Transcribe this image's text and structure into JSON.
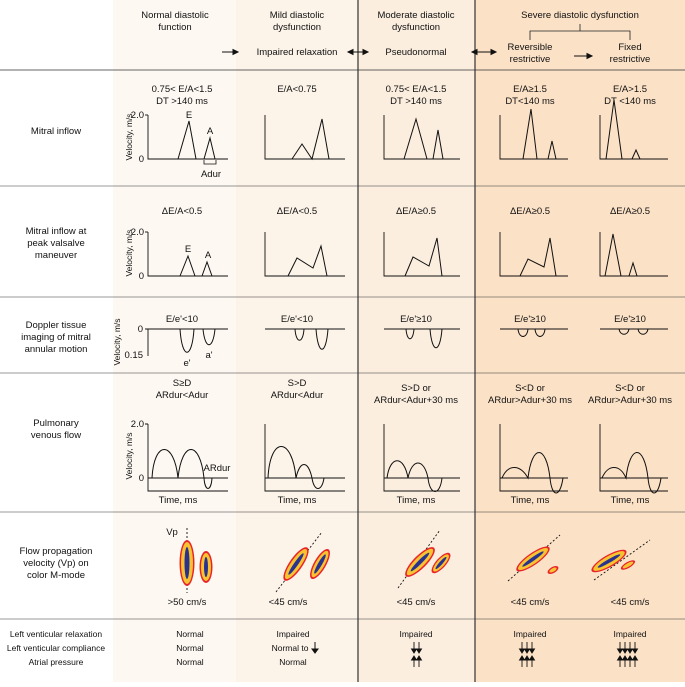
{
  "colors": {
    "col_normal": "#fdf8f2",
    "col_mild": "#fcf3e9",
    "col_moderate": "#fbeedf",
    "col_severe": "#fbe1c6",
    "line": "#333333",
    "flow_outer": "#e8242a",
    "flow_mid": "#f7c331",
    "flow_inner": "#29338f"
  },
  "headers": {
    "normal": [
      "Normal diastolic",
      "function"
    ],
    "mild": [
      "Mild diastolic",
      "dysfunction"
    ],
    "mild_sub": "Impaired relaxation",
    "moderate": [
      "Moderate diastolic",
      "dysfunction"
    ],
    "moderate_sub": "Pseudonormal",
    "severe": "Severe diastolic dysfunction",
    "severe_rev": [
      "Reversible",
      "restrictive"
    ],
    "severe_fix": [
      "Fixed",
      "restrictive"
    ]
  },
  "rows": {
    "mitral": "Mitral inflow",
    "valsalva": [
      "Mitral inflow at",
      "peak valsalve",
      "maneuver"
    ],
    "tissue": [
      "Doppler tissue",
      "imaging of mitral",
      "annular motion"
    ],
    "pulm": [
      "Pulmonary",
      "venous flow"
    ],
    "vp": [
      "Flow propagation",
      "velocity (Vp) on",
      "color M-mode"
    ]
  },
  "axis": {
    "velocity": "Velocity, m/s",
    "time": "Time, ms",
    "v2": "2.0",
    "v0": "0",
    "tissue_top": "0",
    "tissue_bot": "0.15"
  },
  "peak_labels": {
    "E": "E",
    "A": "A",
    "Adur": "Adur",
    "e_prime": "e'",
    "a_prime": "a'",
    "ardur": "ARdur",
    "vp": "Vp"
  },
  "mitral_criteria": {
    "normal": [
      "0.75< E/A<1.5",
      "DT >140 ms"
    ],
    "mild": [
      "E/A<0.75"
    ],
    "moderate": [
      "0.75< E/A<1.5",
      "DT >140 ms"
    ],
    "rev": [
      "E/A≥1.5",
      "DT<140 ms"
    ],
    "fix": [
      "E/A>1.5",
      "DT <140 ms"
    ]
  },
  "valsalva_criteria": {
    "normal": "ΔE/A<0.5",
    "mild": "ΔE/A<0.5",
    "moderate": "ΔE/A≥0.5",
    "rev": "ΔE/A≥0.5",
    "fix": "ΔE/A≥0.5"
  },
  "tissue_criteria": {
    "normal": "E/e'<10",
    "mild": "E/e'<10",
    "moderate": "E/e'≥10",
    "rev": "E/e'≥10",
    "fix": "E/e'≥10"
  },
  "pulm_criteria": {
    "normal": [
      "S≥D",
      "ARdur<Adur"
    ],
    "mild": [
      "S>D",
      "ARdur<Adur"
    ],
    "moderate": [
      "S>D or",
      "ARdur<Adur+30 ms"
    ],
    "rev": [
      "S<D or",
      "ARdur>Adur+30 ms"
    ],
    "fix": [
      "S<D or",
      "ARdur>Adur+30 ms"
    ]
  },
  "vp_criteria": {
    "normal": ">50 cm/s",
    "mild": "<45 cm/s",
    "moderate": "<45 cm/s",
    "rev": "<45 cm/s",
    "fix": "<45 cm/s"
  },
  "bottom": {
    "labels": [
      "Left venticular relaxation",
      "Left venticular compliance",
      "Atrial pressure"
    ],
    "normal": [
      "Normal",
      "Normal",
      "Normal"
    ],
    "mild": [
      "Impaired",
      "Normal to",
      "Normal"
    ],
    "moderate": "Impaired",
    "rev": "Impaired",
    "fix": "Impaired"
  }
}
